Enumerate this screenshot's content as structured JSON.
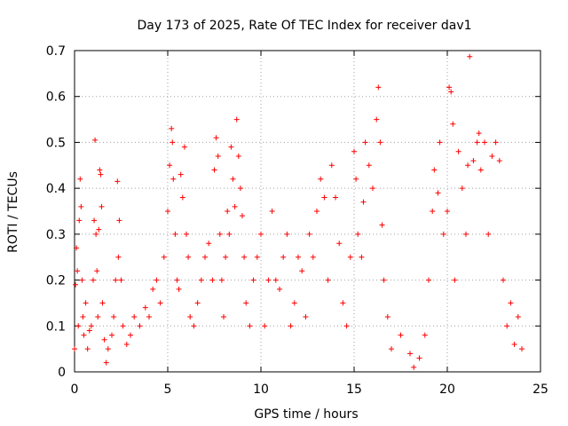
{
  "chart_data": {
    "type": "scatter",
    "title": "Day 173 of 2025, Rate Of TEC Index for receiver dav1",
    "xlabel": "GPS time / hours",
    "ylabel": "ROTI / TECUs",
    "xlim": [
      0,
      25
    ],
    "ylim": [
      0,
      0.7
    ],
    "xticks": [
      0,
      5,
      10,
      15,
      20,
      25
    ],
    "yticks": [
      0,
      0.1,
      0.2,
      0.3,
      0.4,
      0.5,
      0.6,
      0.7
    ],
    "xtick_labels": [
      "0",
      "5",
      "10",
      "15",
      "20",
      "25"
    ],
    "ytick_labels": [
      "0",
      "0.1",
      "0.2",
      "0.3",
      "0.4",
      "0.5",
      "0.6",
      "0.7"
    ],
    "grid": true,
    "marker": "+",
    "color": "#ff0000",
    "series": [
      {
        "name": "dav1",
        "points": [
          [
            0.0,
            0.05
          ],
          [
            0.05,
            0.19
          ],
          [
            0.1,
            0.27
          ],
          [
            0.15,
            0.22
          ],
          [
            0.2,
            0.1
          ],
          [
            0.25,
            0.33
          ],
          [
            0.3,
            0.42
          ],
          [
            0.35,
            0.36
          ],
          [
            0.4,
            0.2
          ],
          [
            0.45,
            0.12
          ],
          [
            0.5,
            0.08
          ],
          [
            0.6,
            0.15
          ],
          [
            0.7,
            0.05
          ],
          [
            0.8,
            0.09
          ],
          [
            0.9,
            0.1
          ],
          [
            1.0,
            0.2
          ],
          [
            1.05,
            0.33
          ],
          [
            1.1,
            0.505
          ],
          [
            1.15,
            0.3
          ],
          [
            1.2,
            0.22
          ],
          [
            1.25,
            0.12
          ],
          [
            1.3,
            0.31
          ],
          [
            1.35,
            0.44
          ],
          [
            1.4,
            0.43
          ],
          [
            1.45,
            0.36
          ],
          [
            1.5,
            0.15
          ],
          [
            1.6,
            0.07
          ],
          [
            1.7,
            0.02
          ],
          [
            1.8,
            0.05
          ],
          [
            2.0,
            0.08
          ],
          [
            2.1,
            0.12
          ],
          [
            2.2,
            0.2
          ],
          [
            2.3,
            0.415
          ],
          [
            2.35,
            0.25
          ],
          [
            2.4,
            0.33
          ],
          [
            2.5,
            0.2
          ],
          [
            2.6,
            0.1
          ],
          [
            2.8,
            0.06
          ],
          [
            3.0,
            0.08
          ],
          [
            3.2,
            0.12
          ],
          [
            3.5,
            0.1
          ],
          [
            3.8,
            0.14
          ],
          [
            4.0,
            0.12
          ],
          [
            4.2,
            0.18
          ],
          [
            4.4,
            0.2
          ],
          [
            4.6,
            0.15
          ],
          [
            4.8,
            0.25
          ],
          [
            5.0,
            0.35
          ],
          [
            5.1,
            0.45
          ],
          [
            5.2,
            0.53
          ],
          [
            5.25,
            0.5
          ],
          [
            5.3,
            0.42
          ],
          [
            5.4,
            0.3
          ],
          [
            5.5,
            0.2
          ],
          [
            5.6,
            0.18
          ],
          [
            5.7,
            0.43
          ],
          [
            5.8,
            0.38
          ],
          [
            5.9,
            0.49
          ],
          [
            6.0,
            0.3
          ],
          [
            6.1,
            0.25
          ],
          [
            6.2,
            0.12
          ],
          [
            6.4,
            0.1
          ],
          [
            6.6,
            0.15
          ],
          [
            6.8,
            0.2
          ],
          [
            7.0,
            0.25
          ],
          [
            7.2,
            0.28
          ],
          [
            7.4,
            0.2
          ],
          [
            7.5,
            0.44
          ],
          [
            7.6,
            0.51
          ],
          [
            7.7,
            0.47
          ],
          [
            7.8,
            0.3
          ],
          [
            7.9,
            0.2
          ],
          [
            8.0,
            0.12
          ],
          [
            8.1,
            0.25
          ],
          [
            8.2,
            0.35
          ],
          [
            8.3,
            0.3
          ],
          [
            8.4,
            0.49
          ],
          [
            8.5,
            0.42
          ],
          [
            8.6,
            0.36
          ],
          [
            8.7,
            0.55
          ],
          [
            8.8,
            0.47
          ],
          [
            8.9,
            0.4
          ],
          [
            9.0,
            0.34
          ],
          [
            9.1,
            0.25
          ],
          [
            9.2,
            0.15
          ],
          [
            9.4,
            0.1
          ],
          [
            9.6,
            0.2
          ],
          [
            9.8,
            0.25
          ],
          [
            10.0,
            0.3
          ],
          [
            10.2,
            0.1
          ],
          [
            10.4,
            0.2
          ],
          [
            10.6,
            0.35
          ],
          [
            10.8,
            0.2
          ],
          [
            11.0,
            0.18
          ],
          [
            11.2,
            0.25
          ],
          [
            11.4,
            0.3
          ],
          [
            11.6,
            0.1
          ],
          [
            11.8,
            0.15
          ],
          [
            12.0,
            0.25
          ],
          [
            12.2,
            0.22
          ],
          [
            12.4,
            0.12
          ],
          [
            12.6,
            0.3
          ],
          [
            12.8,
            0.25
          ],
          [
            13.0,
            0.35
          ],
          [
            13.2,
            0.42
          ],
          [
            13.4,
            0.38
          ],
          [
            13.6,
            0.2
          ],
          [
            13.8,
            0.45
          ],
          [
            14.0,
            0.38
          ],
          [
            14.2,
            0.28
          ],
          [
            14.4,
            0.15
          ],
          [
            14.6,
            0.1
          ],
          [
            14.8,
            0.25
          ],
          [
            15.0,
            0.48
          ],
          [
            15.1,
            0.42
          ],
          [
            15.2,
            0.3
          ],
          [
            15.4,
            0.25
          ],
          [
            15.5,
            0.37
          ],
          [
            15.6,
            0.5
          ],
          [
            15.8,
            0.45
          ],
          [
            16.0,
            0.4
          ],
          [
            16.2,
            0.55
          ],
          [
            16.3,
            0.62
          ],
          [
            16.4,
            0.5
          ],
          [
            16.5,
            0.32
          ],
          [
            16.6,
            0.2
          ],
          [
            16.8,
            0.12
          ],
          [
            17.0,
            0.05
          ],
          [
            17.5,
            0.08
          ],
          [
            18.0,
            0.04
          ],
          [
            18.2,
            0.01
          ],
          [
            18.5,
            0.03
          ],
          [
            18.8,
            0.08
          ],
          [
            19.0,
            0.2
          ],
          [
            19.2,
            0.35
          ],
          [
            19.3,
            0.44
          ],
          [
            19.5,
            0.39
          ],
          [
            19.6,
            0.5
          ],
          [
            19.8,
            0.3
          ],
          [
            20.0,
            0.35
          ],
          [
            20.1,
            0.62
          ],
          [
            20.2,
            0.61
          ],
          [
            20.3,
            0.54
          ],
          [
            20.4,
            0.2
          ],
          [
            20.6,
            0.48
          ],
          [
            20.8,
            0.4
          ],
          [
            21.0,
            0.3
          ],
          [
            21.1,
            0.45
          ],
          [
            21.2,
            0.687
          ],
          [
            21.4,
            0.46
          ],
          [
            21.6,
            0.5
          ],
          [
            21.7,
            0.52
          ],
          [
            21.8,
            0.44
          ],
          [
            22.0,
            0.5
          ],
          [
            22.2,
            0.3
          ],
          [
            22.4,
            0.47
          ],
          [
            22.6,
            0.5
          ],
          [
            22.8,
            0.46
          ],
          [
            23.0,
            0.2
          ],
          [
            23.2,
            0.1
          ],
          [
            23.4,
            0.15
          ],
          [
            23.6,
            0.06
          ],
          [
            23.8,
            0.12
          ],
          [
            24.0,
            0.05
          ]
        ]
      }
    ]
  }
}
